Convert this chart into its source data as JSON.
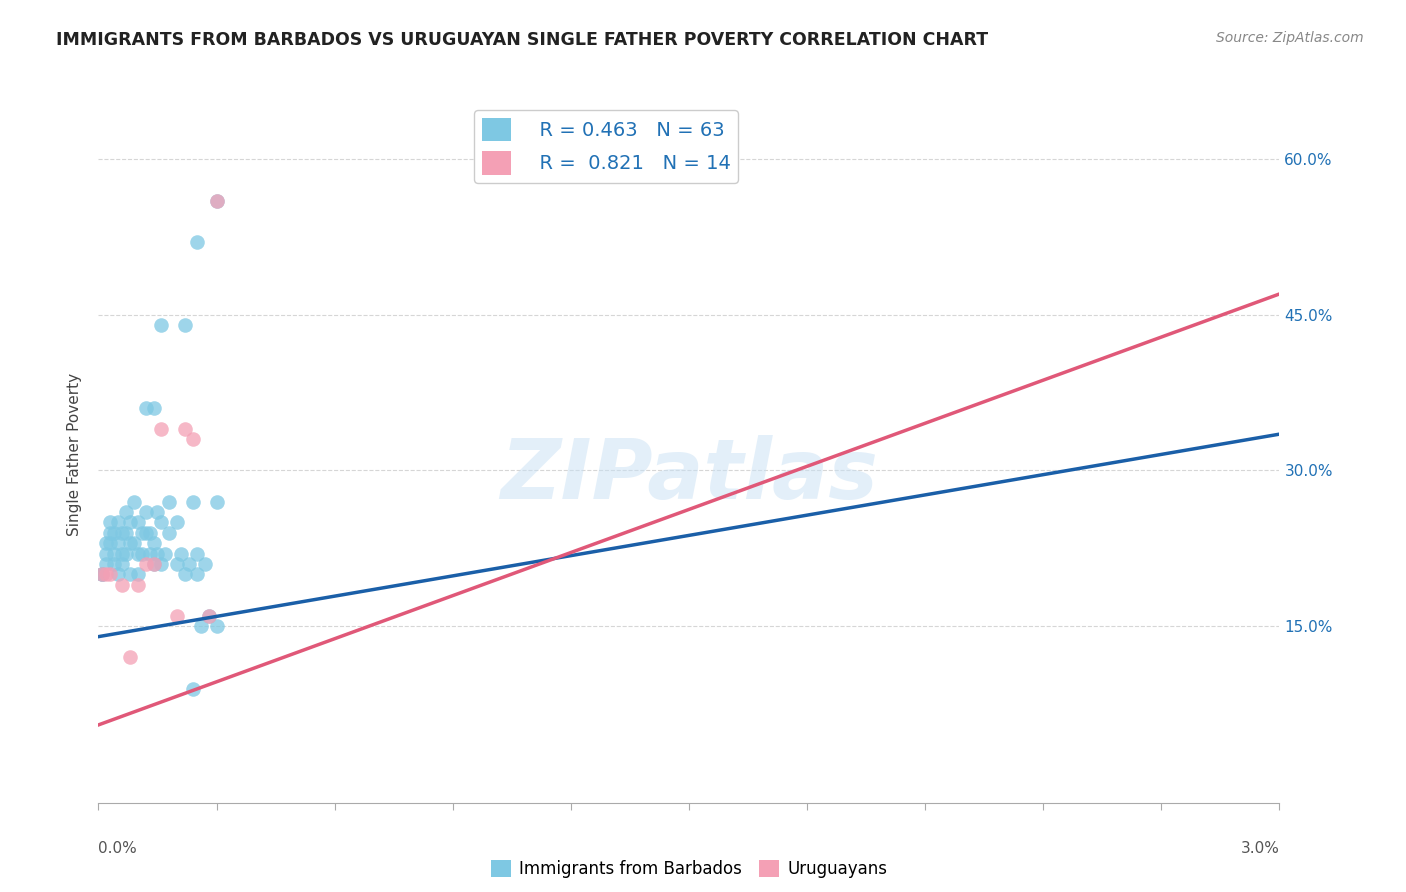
{
  "title": "IMMIGRANTS FROM BARBADOS VS URUGUAYAN SINGLE FATHER POVERTY CORRELATION CHART",
  "source": "Source: ZipAtlas.com",
  "ylabel": "Single Father Poverty",
  "y_ticks": [
    0.15,
    0.3,
    0.45,
    0.6
  ],
  "y_tick_labels": [
    "15.0%",
    "30.0%",
    "45.0%",
    "60.0%"
  ],
  "xlim": [
    0.0,
    0.03
  ],
  "ylim": [
    -0.02,
    0.65
  ],
  "blue_r": 0.463,
  "blue_n": 63,
  "pink_r": 0.821,
  "pink_n": 14,
  "blue_color": "#7EC8E3",
  "pink_color": "#F4A0B5",
  "blue_line_color": "#1A5FA8",
  "pink_line_color": "#E05878",
  "legend_label_blue": "Immigrants from Barbados",
  "legend_label_pink": "Uruguayans",
  "watermark": "ZIPatlas",
  "blue_dots_x": [
    0.0001,
    0.0001,
    0.0002,
    0.0002,
    0.0002,
    0.0003,
    0.0003,
    0.0003,
    0.0004,
    0.0004,
    0.0004,
    0.0005,
    0.0005,
    0.0005,
    0.0006,
    0.0006,
    0.0006,
    0.0007,
    0.0007,
    0.0007,
    0.0008,
    0.0008,
    0.0008,
    0.0009,
    0.0009,
    0.001,
    0.001,
    0.001,
    0.0011,
    0.0011,
    0.0012,
    0.0012,
    0.0013,
    0.0013,
    0.0014,
    0.0014,
    0.0015,
    0.0015,
    0.0016,
    0.0016,
    0.0017,
    0.0018,
    0.0018,
    0.002,
    0.002,
    0.0021,
    0.0022,
    0.0023,
    0.0024,
    0.0025,
    0.0025,
    0.0026,
    0.0027,
    0.0028,
    0.003,
    0.003,
    0.0012,
    0.0014,
    0.0016,
    0.0022,
    0.0024,
    0.0025,
    0.003
  ],
  "blue_dots_y": [
    0.2,
    0.2,
    0.22,
    0.21,
    0.23,
    0.24,
    0.23,
    0.25,
    0.24,
    0.22,
    0.21,
    0.25,
    0.23,
    0.2,
    0.24,
    0.22,
    0.21,
    0.26,
    0.24,
    0.22,
    0.25,
    0.23,
    0.2,
    0.27,
    0.23,
    0.25,
    0.22,
    0.2,
    0.24,
    0.22,
    0.26,
    0.24,
    0.24,
    0.22,
    0.23,
    0.21,
    0.26,
    0.22,
    0.25,
    0.21,
    0.22,
    0.27,
    0.24,
    0.25,
    0.21,
    0.22,
    0.2,
    0.21,
    0.27,
    0.22,
    0.2,
    0.15,
    0.21,
    0.16,
    0.27,
    0.15,
    0.36,
    0.36,
    0.44,
    0.44,
    0.09,
    0.52,
    0.56
  ],
  "pink_dots_x": [
    0.0001,
    0.0002,
    0.0003,
    0.0006,
    0.0008,
    0.001,
    0.0012,
    0.0014,
    0.0016,
    0.002,
    0.0022,
    0.0024,
    0.003,
    0.0028
  ],
  "pink_dots_y": [
    0.2,
    0.2,
    0.2,
    0.19,
    0.12,
    0.19,
    0.21,
    0.21,
    0.34,
    0.16,
    0.34,
    0.33,
    0.56,
    0.16
  ],
  "blue_line_x": [
    0.0,
    0.03
  ],
  "blue_line_y": [
    0.14,
    0.335
  ],
  "pink_line_x": [
    0.0,
    0.03
  ],
  "pink_line_y": [
    0.055,
    0.47
  ]
}
